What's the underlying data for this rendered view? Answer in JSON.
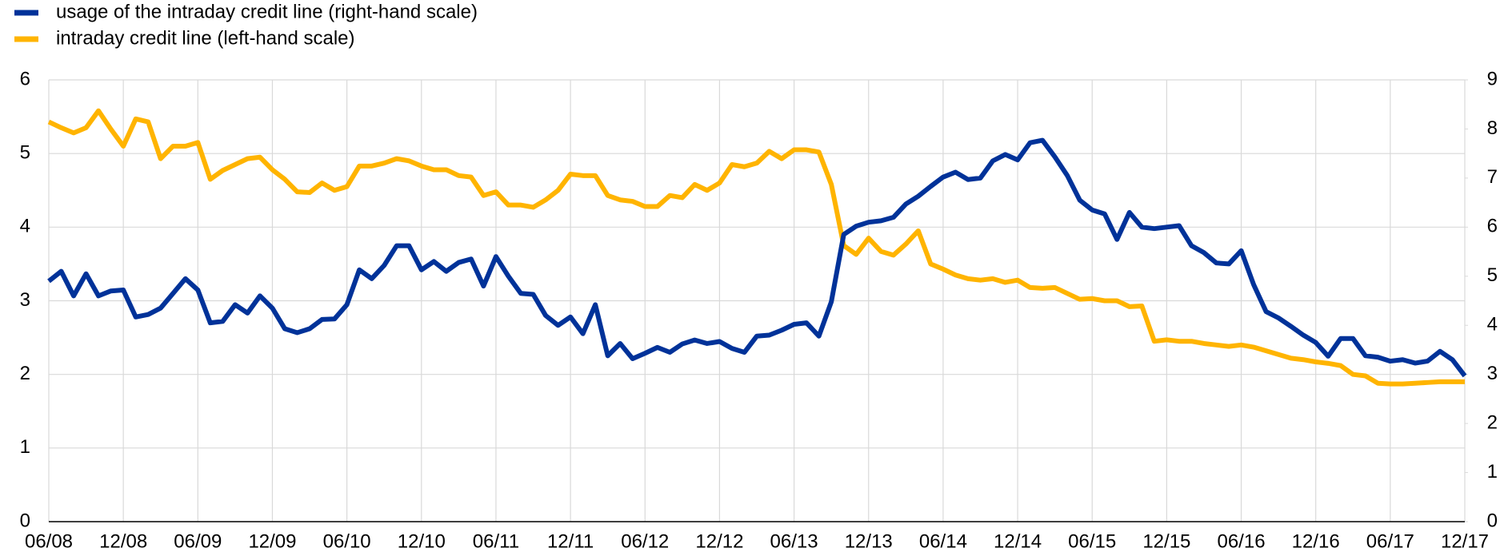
{
  "chart_data": {
    "type": "line",
    "categories": [
      "06/08",
      null,
      null,
      null,
      null,
      null,
      "12/08",
      null,
      null,
      null,
      null,
      null,
      "06/09",
      null,
      null,
      null,
      null,
      null,
      "12/09",
      null,
      null,
      null,
      null,
      null,
      "06/10",
      null,
      null,
      null,
      null,
      null,
      "12/10",
      null,
      null,
      null,
      null,
      null,
      "06/11",
      null,
      null,
      null,
      null,
      null,
      "12/11",
      null,
      null,
      null,
      null,
      null,
      "06/12",
      null,
      null,
      null,
      null,
      null,
      "12/12",
      null,
      null,
      null,
      null,
      null,
      "06/13",
      null,
      null,
      null,
      null,
      null,
      "12/13",
      null,
      null,
      null,
      null,
      null,
      "06/14",
      null,
      null,
      null,
      null,
      null,
      "12/14",
      null,
      null,
      null,
      null,
      null,
      "06/15",
      null,
      null,
      null,
      null,
      null,
      "12/15",
      null,
      null,
      null,
      null,
      null,
      "06/16",
      null,
      null,
      null,
      null,
      null,
      "12/16",
      null,
      null,
      null,
      null,
      null,
      "06/17",
      null,
      null,
      null,
      null,
      null,
      "12/17"
    ],
    "series": [
      {
        "name": "usage of the intraday credit line (right-hand scale)",
        "color": "#003299",
        "axis": "y2",
        "values": [
          4.9,
          5.1,
          4.6,
          5.05,
          4.6,
          4.7,
          4.72,
          4.17,
          4.22,
          4.35,
          4.65,
          4.95,
          4.72,
          4.05,
          4.08,
          4.42,
          4.25,
          4.6,
          4.35,
          3.93,
          3.85,
          3.93,
          4.12,
          4.13,
          4.42,
          5.13,
          4.95,
          5.22,
          5.62,
          5.62,
          5.13,
          5.3,
          5.1,
          5.28,
          5.35,
          4.8,
          5.4,
          5.0,
          4.65,
          4.63,
          4.2,
          4.0,
          4.17,
          3.83,
          4.42,
          3.38,
          3.63,
          3.32,
          3.43,
          3.55,
          3.45,
          3.62,
          3.7,
          3.63,
          3.67,
          3.53,
          3.45,
          3.78,
          3.8,
          3.9,
          4.02,
          4.05,
          3.78,
          4.48,
          5.85,
          6.02,
          6.1,
          6.13,
          6.2,
          6.47,
          6.63,
          6.83,
          7.02,
          7.12,
          6.97,
          7.0,
          7.35,
          7.48,
          7.37,
          7.72,
          7.77,
          7.43,
          7.05,
          6.55,
          6.35,
          6.27,
          5.75,
          6.3,
          6.0,
          5.97,
          6.0,
          6.03,
          5.62,
          5.48,
          5.27,
          5.25,
          5.52,
          4.83,
          4.28,
          4.15,
          3.98,
          3.8,
          3.65,
          3.37,
          3.73,
          3.73,
          3.38,
          3.35,
          3.27,
          3.3,
          3.23,
          3.27,
          3.47,
          3.3,
          2.97
        ]
      },
      {
        "name": "intraday credit line (left-hand scale)",
        "color": "#ffb400",
        "values": [
          5.43,
          5.35,
          5.28,
          5.35,
          5.58,
          5.33,
          5.1,
          5.47,
          5.43,
          4.93,
          5.1,
          5.1,
          5.15,
          4.65,
          4.77,
          4.85,
          4.93,
          4.95,
          4.78,
          4.65,
          4.48,
          4.47,
          4.6,
          4.5,
          4.55,
          4.83,
          4.83,
          4.87,
          4.93,
          4.9,
          4.83,
          4.78,
          4.78,
          4.7,
          4.68,
          4.43,
          4.48,
          4.3,
          4.3,
          4.27,
          4.37,
          4.5,
          4.72,
          4.7,
          4.7,
          4.43,
          4.37,
          4.35,
          4.28,
          4.28,
          4.43,
          4.4,
          4.58,
          4.5,
          4.6,
          4.85,
          4.82,
          4.87,
          5.03,
          4.93,
          5.05,
          5.05,
          5.02,
          4.58,
          3.75,
          3.63,
          3.85,
          3.67,
          3.62,
          3.77,
          3.95,
          3.5,
          3.43,
          3.35,
          3.3,
          3.28,
          3.3,
          3.25,
          3.28,
          3.18,
          3.17,
          3.18,
          3.1,
          3.02,
          3.03,
          3.0,
          3.0,
          2.92,
          2.93,
          2.45,
          2.47,
          2.45,
          2.45,
          2.42,
          2.4,
          2.38,
          2.4,
          2.37,
          2.32,
          2.27,
          2.22,
          2.2,
          2.17,
          2.15,
          2.12,
          2.0,
          1.98,
          1.88,
          1.87,
          1.87,
          1.88,
          1.89,
          1.9,
          1.9,
          1.9
        ]
      }
    ],
    "ylim": [
      0,
      6
    ],
    "yticks": [
      0,
      1,
      2,
      3,
      4,
      5,
      6
    ],
    "y2lim": [
      0,
      9
    ],
    "y2ticks": [
      0,
      1,
      2,
      3,
      4,
      5,
      6,
      7,
      8,
      9
    ],
    "grid": true
  }
}
